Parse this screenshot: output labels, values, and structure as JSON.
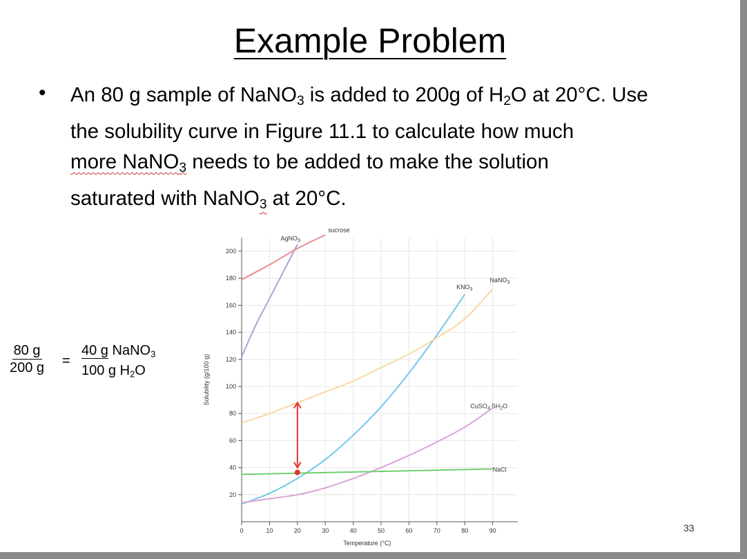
{
  "slide": {
    "title": "Example Problem",
    "bullet": {
      "line1a": "An 80 g sample of NaNO",
      "line1b": " is added to 200g of H",
      "line1c": "O at 20°C. Use",
      "line2": "the solubility curve in Figure 11.1 to calculate how much",
      "line3a": "more NaNO",
      "line3b": " needs to be added to make the solution",
      "line4a": "saturated with NaNO",
      "line4b": " at 20°C.",
      "sub3": "3",
      "sub2": "2"
    },
    "equation": {
      "left_num": "80 g",
      "left_den": "200 g",
      "equals": "=",
      "right_num": "40 g",
      "right_num_unit": "NaNO",
      "right_den": "100 g H",
      "sub3": "3",
      "sub2": "2",
      "suffix_o": "O"
    },
    "page_number": "33"
  },
  "chart_data": {
    "type": "line",
    "xlabel": "Temperature (°C)",
    "ylabel": "Solubility (g/100 g)",
    "xlim": [
      0,
      100
    ],
    "ylim": [
      0,
      210
    ],
    "xticks": [
      0,
      10,
      20,
      30,
      40,
      50,
      60,
      70,
      80,
      90
    ],
    "yticks": [
      20,
      40,
      60,
      80,
      100,
      120,
      140,
      160,
      180,
      200
    ],
    "grid": true,
    "series": [
      {
        "name": "AgNO3",
        "color": "#a9a3d6",
        "x": [
          0,
          5,
          10,
          15,
          20
        ],
        "y": [
          122,
          145,
          165,
          185,
          205
        ]
      },
      {
        "name": "sucrose",
        "color": "#ec8a8a",
        "x": [
          0,
          10,
          20,
          30
        ],
        "y": [
          179,
          190,
          202,
          212
        ]
      },
      {
        "name": "KNO3",
        "color": "#74c8ec",
        "x": [
          0,
          10,
          20,
          30,
          40,
          50,
          60,
          70,
          80
        ],
        "y": [
          13,
          21,
          32,
          46,
          64,
          85,
          110,
          138,
          168
        ]
      },
      {
        "name": "NaNO3",
        "color": "#f7d9a3",
        "x": [
          0,
          10,
          20,
          30,
          40,
          50,
          60,
          70,
          80,
          90
        ],
        "y": [
          73,
          80,
          88,
          96,
          104,
          114,
          124,
          136,
          150,
          172
        ]
      },
      {
        "name": "CuSO4·5H2O",
        "color": "#d9a3d8",
        "x": [
          0,
          10,
          20,
          30,
          40,
          50,
          60,
          70,
          80,
          90
        ],
        "y": [
          14,
          17,
          20,
          25,
          32,
          40,
          49,
          59,
          70,
          84
        ]
      },
      {
        "name": "NaCl",
        "color": "#6cd06c",
        "x": [
          0,
          90
        ],
        "y": [
          35,
          39
        ]
      }
    ],
    "labels": {
      "agno3": "AgNO",
      "sucrose": "sucrose",
      "kno3": "KNO",
      "nano3": "NaNO",
      "cuso4": "CuSO",
      "cuso4_tail": "·5H",
      "cuso4_end": "O",
      "nacl": "NaCl",
      "sub3": "3",
      "sub4": "4",
      "sub2": "2"
    },
    "annotation": {
      "type": "double-arrow",
      "color": "#e0342b",
      "x": 20,
      "y_from": 40,
      "y_to": 88
    }
  }
}
